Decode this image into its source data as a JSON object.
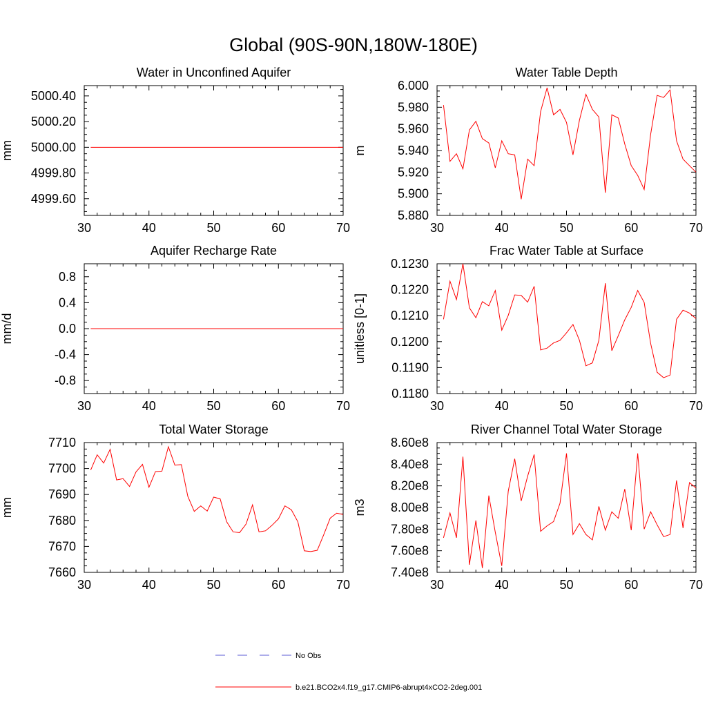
{
  "figure": {
    "title": "Global (90S-90N,180W-180E)",
    "legend": [
      {
        "label": "No Obs",
        "color": "#5b5bd6",
        "dash": "dashed"
      },
      {
        "label": "b.e21.BCO2x4.f19_g17.CMIP6-abrupt4xCO2-2deg.001",
        "color": "#ff0000",
        "dash": "solid"
      }
    ]
  },
  "chart_data": [
    {
      "type": "line",
      "title": "Water in Unconfined Aquifer",
      "xlabel": "",
      "ylabel": "mm",
      "xlim": [
        30,
        70
      ],
      "ylim": [
        4999.47,
        5000.48
      ],
      "xticks": [
        30,
        40,
        50,
        60,
        70
      ],
      "yticks": [
        4999.6,
        4999.8,
        5000.0,
        5000.2,
        5000.4
      ],
      "ytick_labels": [
        "4999.60",
        "4999.80",
        "5000.00",
        "5000.20",
        "5000.40"
      ],
      "grid": false,
      "series": [
        {
          "color": "#ff0000",
          "x": [
            31,
            70
          ],
          "y": [
            5000.0,
            5000.0
          ]
        }
      ]
    },
    {
      "type": "line",
      "title": "Water Table Depth",
      "xlabel": "",
      "ylabel": "m",
      "xlim": [
        30,
        70
      ],
      "ylim": [
        5.88,
        6.0
      ],
      "xticks": [
        30,
        40,
        50,
        60,
        70
      ],
      "yticks": [
        5.88,
        5.9,
        5.92,
        5.94,
        5.96,
        5.98,
        6.0
      ],
      "ytick_labels": [
        "5.880",
        "5.900",
        "5.920",
        "5.940",
        "5.960",
        "5.980",
        "6.000"
      ],
      "grid": false,
      "series": [
        {
          "color": "#ff0000",
          "x": [
            31,
            32,
            33,
            34,
            35,
            36,
            37,
            38,
            39,
            40,
            41,
            42,
            43,
            44,
            45,
            46,
            47,
            48,
            49,
            50,
            51,
            52,
            53,
            54,
            55,
            56,
            57,
            58,
            59,
            60,
            61,
            62,
            63,
            64,
            65,
            66,
            67,
            68,
            69,
            70
          ],
          "y": [
            5.982,
            5.93,
            5.937,
            5.923,
            5.959,
            5.967,
            5.951,
            5.947,
            5.924,
            5.949,
            5.937,
            5.936,
            5.895,
            5.932,
            5.926,
            5.976,
            5.998,
            5.973,
            5.978,
            5.966,
            5.936,
            5.968,
            5.992,
            5.978,
            5.971,
            5.901,
            5.973,
            5.97,
            5.946,
            5.926,
            5.917,
            5.904,
            5.955,
            5.991,
            5.989,
            5.996,
            5.949,
            5.932,
            5.926,
            5.92
          ]
        }
      ]
    },
    {
      "type": "line",
      "title": "Aquifer Recharge Rate",
      "xlabel": "",
      "ylabel": "mm/d",
      "xlim": [
        30,
        70
      ],
      "ylim": [
        -1.0,
        1.0
      ],
      "xticks": [
        30,
        40,
        50,
        60,
        70
      ],
      "yticks": [
        -0.8,
        -0.4,
        0.0,
        0.4,
        0.8
      ],
      "ytick_labels": [
        "-0.8",
        "-0.4",
        "0.0",
        "0.4",
        "0.8"
      ],
      "grid": false,
      "series": [
        {
          "color": "#ff0000",
          "x": [
            31,
            70
          ],
          "y": [
            0.0,
            0.0
          ]
        }
      ]
    },
    {
      "type": "line",
      "title": "Frac Water Table at Surface",
      "xlabel": "",
      "ylabel": "unitless [0-1]",
      "xlim": [
        30,
        70
      ],
      "ylim": [
        0.118,
        0.123
      ],
      "xticks": [
        30,
        40,
        50,
        60,
        70
      ],
      "yticks": [
        0.118,
        0.119,
        0.12,
        0.121,
        0.122,
        0.123
      ],
      "ytick_labels": [
        "0.1180",
        "0.1190",
        "0.1200",
        "0.1210",
        "0.1220",
        "0.1230"
      ],
      "grid": false,
      "series": [
        {
          "color": "#ff0000",
          "x": [
            31,
            32,
            33,
            34,
            35,
            36,
            37,
            38,
            39,
            40,
            41,
            42,
            43,
            44,
            45,
            46,
            47,
            48,
            49,
            50,
            51,
            52,
            53,
            54,
            55,
            56,
            57,
            58,
            59,
            60,
            61,
            62,
            63,
            64,
            65,
            66,
            67,
            68,
            69,
            70
          ],
          "y": [
            0.12086,
            0.12233,
            0.12162,
            0.123,
            0.1213,
            0.12092,
            0.12154,
            0.12138,
            0.12197,
            0.12044,
            0.12101,
            0.1218,
            0.12178,
            0.12152,
            0.12213,
            0.11968,
            0.11975,
            0.11995,
            0.12005,
            0.12034,
            0.12066,
            0.12005,
            0.11907,
            0.11918,
            0.12005,
            0.12225,
            0.11965,
            0.12023,
            0.12084,
            0.12132,
            0.12197,
            0.12151,
            0.11993,
            0.11882,
            0.11861,
            0.11871,
            0.12086,
            0.12121,
            0.1211,
            0.12089
          ]
        }
      ]
    },
    {
      "type": "line",
      "title": "Total Water Storage",
      "xlabel": "",
      "ylabel": "mm",
      "xlim": [
        30,
        70
      ],
      "ylim": [
        7660,
        7710
      ],
      "xticks": [
        30,
        40,
        50,
        60,
        70
      ],
      "yticks": [
        7660,
        7670,
        7680,
        7690,
        7700,
        7710
      ],
      "ytick_labels": [
        "7660",
        "7670",
        "7680",
        "7690",
        "7700",
        "7710"
      ],
      "grid": false,
      "series": [
        {
          "color": "#ff0000",
          "x": [
            31,
            32,
            33,
            34,
            35,
            36,
            37,
            38,
            39,
            40,
            41,
            42,
            43,
            44,
            45,
            46,
            47,
            48,
            49,
            50,
            51,
            52,
            53,
            54,
            55,
            56,
            57,
            58,
            59,
            60,
            61,
            62,
            63,
            64,
            65,
            66,
            67,
            68,
            69,
            70
          ],
          "y": [
            7699.4,
            7705.3,
            7702.1,
            7707.4,
            7695.6,
            7696.1,
            7693.1,
            7698.7,
            7701.6,
            7692.8,
            7698.8,
            7699.0,
            7708.4,
            7701.3,
            7701.5,
            7689.3,
            7683.5,
            7685.6,
            7683.6,
            7689.0,
            7688.3,
            7679.5,
            7675.6,
            7675.3,
            7678.6,
            7686.0,
            7675.6,
            7676.0,
            7678.1,
            7680.6,
            7685.6,
            7684.1,
            7679.5,
            7668.3,
            7668.0,
            7668.5,
            7674.5,
            7680.9,
            7682.8,
            7682.3
          ]
        }
      ]
    },
    {
      "type": "line",
      "title": "River Channel Total Water Storage",
      "xlabel": "",
      "ylabel": "m3",
      "xlim": [
        30,
        70
      ],
      "ylim": [
        740000000,
        860000000
      ],
      "xticks": [
        30,
        40,
        50,
        60,
        70
      ],
      "yticks": [
        740000000,
        760000000,
        780000000,
        800000000,
        820000000,
        840000000,
        860000000
      ],
      "ytick_labels": [
        "7.40e8",
        "7.60e8",
        "7.80e8",
        "8.00e8",
        "8.20e8",
        "8.40e8",
        "8.60e8"
      ],
      "grid": false,
      "series": [
        {
          "color": "#ff0000",
          "x": [
            31,
            32,
            33,
            34,
            35,
            36,
            37,
            38,
            39,
            40,
            41,
            42,
            43,
            44,
            45,
            46,
            47,
            48,
            49,
            50,
            51,
            52,
            53,
            54,
            55,
            56,
            57,
            58,
            59,
            60,
            61,
            62,
            63,
            64,
            65,
            66,
            67,
            68,
            69,
            70
          ],
          "y": [
            772000000,
            795000000,
            772000000,
            847000000,
            747000000,
            788000000,
            744000000,
            811000000,
            777000000,
            746000000,
            815000000,
            845000000,
            806000000,
            829000000,
            849000000,
            778000000,
            783000000,
            787000000,
            804000000,
            850000000,
            775000000,
            785000000,
            775000000,
            770000000,
            801000000,
            779000000,
            796000000,
            790000000,
            817000000,
            779000000,
            850000000,
            780000000,
            796000000,
            784000000,
            773000000,
            775000000,
            825000000,
            781000000,
            823000000,
            818000000
          ]
        }
      ]
    }
  ]
}
